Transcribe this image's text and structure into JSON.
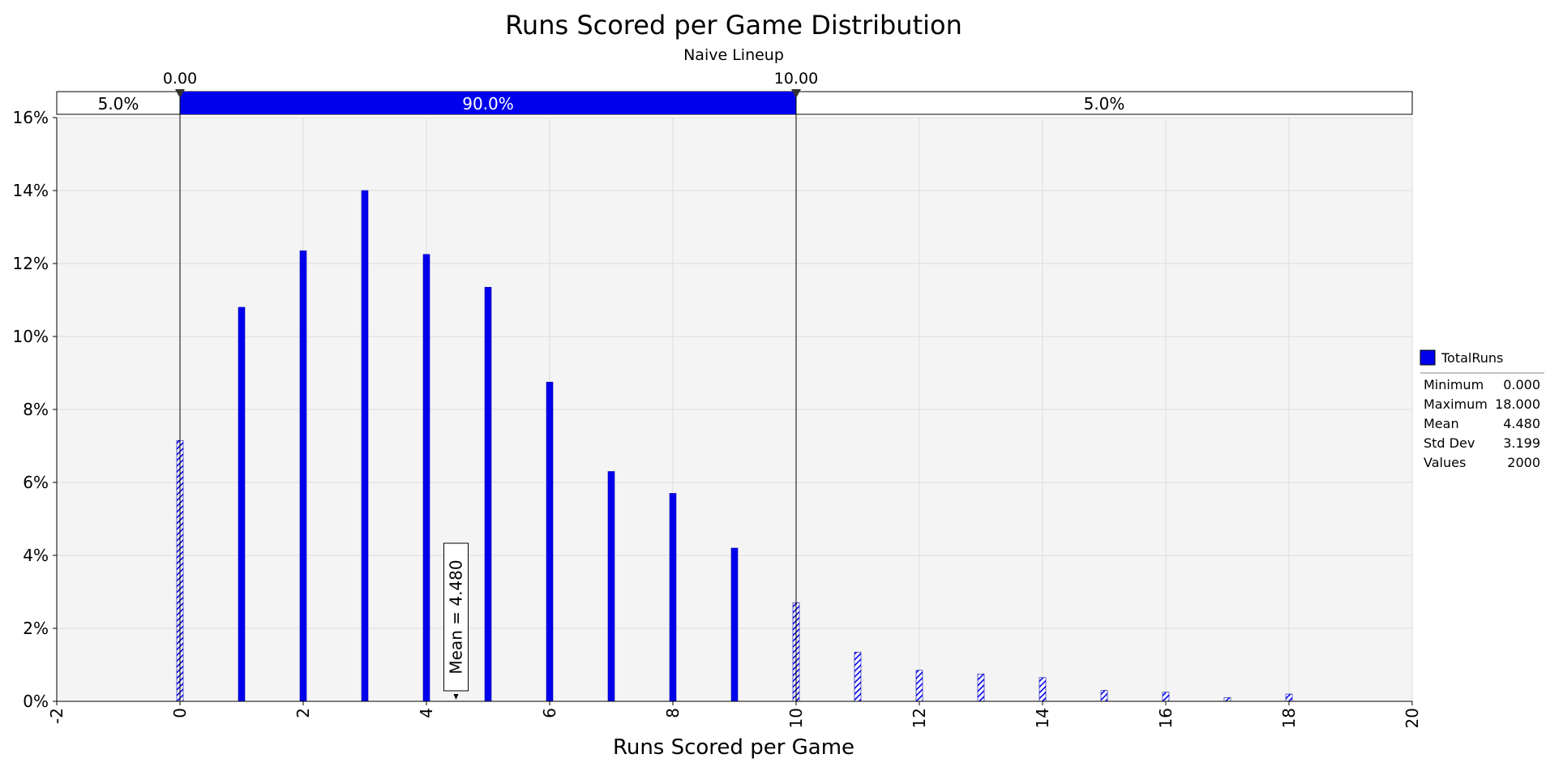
{
  "chart_data": {
    "type": "bar",
    "title": "Runs Scored per Game Distribution",
    "subtitle": "Naive Lineup",
    "xlabel": "Runs Scored per Game",
    "ylabel": "",
    "xlim": [
      -2,
      20
    ],
    "ylim": [
      0,
      16
    ],
    "x_ticks": [
      "-2",
      "0",
      "2",
      "4",
      "6",
      "8",
      "10",
      "12",
      "14",
      "16",
      "18",
      "20"
    ],
    "y_ticks": [
      "0%",
      "2%",
      "4%",
      "6%",
      "8%",
      "10%",
      "12%",
      "14%",
      "16%"
    ],
    "grid": true,
    "bar_color": "#0000ee",
    "series": [
      {
        "name": "TotalRuns",
        "x": [
          0,
          1,
          2,
          3,
          4,
          5,
          6,
          7,
          8,
          9,
          10,
          11,
          12,
          13,
          14,
          15,
          16,
          17,
          18
        ],
        "values": [
          7.15,
          10.8,
          12.35,
          14.0,
          12.25,
          11.35,
          8.75,
          6.3,
          5.7,
          4.2,
          2.7,
          1.35,
          0.85,
          0.75,
          0.65,
          0.3,
          0.25,
          0.1,
          0.2
        ],
        "hatched_outside_band": true
      }
    ],
    "band": {
      "left_marker": "0.00",
      "right_marker": "10.00",
      "left_value": 0,
      "right_value": 10,
      "left_pct": "5.0%",
      "middle_pct": "90.0%",
      "right_pct": "5.0%"
    },
    "mean_annotation": {
      "label": "Mean = 4.480",
      "value": 4.48
    },
    "legend": {
      "placement": "right",
      "series_name": "TotalRuns",
      "stats": [
        {
          "label": "Minimum",
          "value": "0.000"
        },
        {
          "label": "Maximum",
          "value": "18.000"
        },
        {
          "label": "Mean",
          "value": "4.480"
        },
        {
          "label": "Std Dev",
          "value": "3.199"
        },
        {
          "label": "Values",
          "value": "2000"
        }
      ]
    }
  }
}
